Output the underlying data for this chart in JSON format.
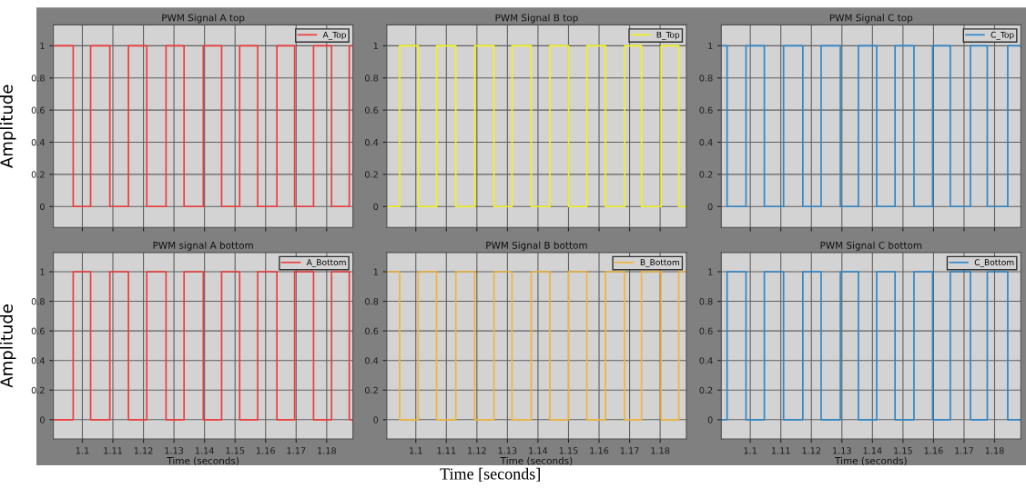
{
  "chart_data": [
    {
      "type": "step",
      "title": "PWM Signal A top",
      "ylabel": "Amplitude",
      "xlim": [
        1.0905,
        1.1886
      ],
      "ylim": [
        -0.13,
        1.13
      ],
      "xticks": [
        1.1,
        1.11,
        1.12,
        1.13,
        1.14,
        1.15,
        1.16,
        1.17,
        1.18
      ],
      "yticks": [
        0,
        0.2,
        0.4,
        0.6,
        0.8,
        1
      ],
      "tick_labels": "y",
      "grid": true,
      "legend": "top right",
      "series": [
        {
          "name": "A_Top",
          "color": "#f03a3a",
          "x": [
            1.0905,
            1.097,
            1.1027,
            1.109,
            1.1151,
            1.1211,
            1.1274,
            1.1333,
            1.1396,
            1.1456,
            1.1515,
            1.1574,
            1.1637,
            1.1695,
            1.1757,
            1.1816,
            1.1874,
            1.1886
          ],
          "values": [
            1,
            0,
            1,
            0,
            1,
            0,
            1,
            0,
            1,
            0,
            1,
            0,
            1,
            0,
            1,
            0,
            1,
            1
          ]
        }
      ]
    },
    {
      "type": "step",
      "title": "PWM Signal B top",
      "xlim": [
        1.0905,
        1.1886
      ],
      "ylim": [
        -0.13,
        1.13
      ],
      "xticks": [
        1.1,
        1.11,
        1.12,
        1.13,
        1.14,
        1.15,
        1.16,
        1.17,
        1.18
      ],
      "yticks": [
        0,
        0.2,
        0.4,
        0.6,
        0.8,
        1
      ],
      "tick_labels": "y",
      "grid": true,
      "legend": "top right",
      "series": [
        {
          "name": "B_Top",
          "color": "#f2f21c",
          "x": [
            1.0905,
            1.0947,
            1.1008,
            1.1068,
            1.1131,
            1.1193,
            1.1256,
            1.1315,
            1.1378,
            1.1439,
            1.15,
            1.156,
            1.1621,
            1.1684,
            1.1739,
            1.1803,
            1.1861,
            1.1886
          ],
          "values": [
            0,
            1,
            0,
            1,
            0,
            1,
            0,
            1,
            0,
            1,
            0,
            1,
            0,
            1,
            0,
            1,
            0,
            0
          ]
        }
      ]
    },
    {
      "type": "step",
      "title": "PWM Signal C top",
      "xlim": [
        1.0905,
        1.1886
      ],
      "ylim": [
        -0.13,
        1.13
      ],
      "xticks": [
        1.1,
        1.11,
        1.12,
        1.13,
        1.14,
        1.15,
        1.16,
        1.17,
        1.18
      ],
      "yticks": [
        0,
        0.2,
        0.4,
        0.6,
        0.8,
        1
      ],
      "tick_labels": "y",
      "grid": true,
      "legend": "top right",
      "series": [
        {
          "name": "C_Top",
          "color": "#2e86c8",
          "x": [
            1.0905,
            1.0924,
            1.0986,
            1.1046,
            1.1109,
            1.1172,
            1.1232,
            1.1295,
            1.1354,
            1.1414,
            1.1474,
            1.1536,
            1.1597,
            1.1655,
            1.1721,
            1.1776,
            1.1843,
            1.1886
          ],
          "values": [
            1,
            0,
            1,
            0,
            1,
            0,
            1,
            0,
            1,
            0,
            1,
            0,
            1,
            0,
            1,
            0,
            1,
            1
          ]
        }
      ]
    },
    {
      "type": "step",
      "title": "PWM signal A bottom",
      "ylabel": "Amplitude",
      "xlabel": "Time (seconds)",
      "xlim": [
        1.0905,
        1.1886
      ],
      "ylim": [
        -0.13,
        1.13
      ],
      "xticks": [
        1.1,
        1.11,
        1.12,
        1.13,
        1.14,
        1.15,
        1.16,
        1.17,
        1.18
      ],
      "yticks": [
        0,
        0.2,
        0.4,
        0.6,
        0.8,
        1
      ],
      "grid": true,
      "legend": "top right",
      "series": [
        {
          "name": "A_Bottom",
          "color": "#f03a3a",
          "x": [
            1.0905,
            1.097,
            1.1027,
            1.109,
            1.1151,
            1.1211,
            1.1274,
            1.1333,
            1.1396,
            1.1456,
            1.1515,
            1.1574,
            1.1637,
            1.1695,
            1.1757,
            1.1816,
            1.1874,
            1.1886
          ],
          "values": [
            0,
            1,
            0,
            1,
            0,
            1,
            0,
            1,
            0,
            1,
            0,
            1,
            0,
            1,
            0,
            1,
            0,
            0
          ]
        }
      ]
    },
    {
      "type": "step",
      "title": "PWM Signal B bottom",
      "xlabel": "Time (seconds)",
      "annotations": [
        "Time [seconds]"
      ],
      "xlim": [
        1.0905,
        1.1886
      ],
      "ylim": [
        -0.13,
        1.13
      ],
      "xticks": [
        1.1,
        1.11,
        1.12,
        1.13,
        1.14,
        1.15,
        1.16,
        1.17,
        1.18
      ],
      "yticks": [
        0,
        0.2,
        0.4,
        0.6,
        0.8,
        1
      ],
      "grid": true,
      "legend": "top right",
      "series": [
        {
          "name": "B_Bottom",
          "color": "#f0b43c",
          "x": [
            1.0905,
            1.0947,
            1.1008,
            1.1068,
            1.1131,
            1.1193,
            1.1256,
            1.1315,
            1.1378,
            1.1439,
            1.15,
            1.156,
            1.1621,
            1.1684,
            1.1739,
            1.1803,
            1.1861,
            1.1886
          ],
          "values": [
            1,
            0,
            1,
            0,
            1,
            0,
            1,
            0,
            1,
            0,
            1,
            0,
            1,
            0,
            1,
            0,
            1,
            1
          ]
        }
      ]
    },
    {
      "type": "step",
      "title": "PWM Signal C bottom",
      "xlabel": "Time (seconds)",
      "xlim": [
        1.0905,
        1.1886
      ],
      "ylim": [
        -0.13,
        1.13
      ],
      "xticks": [
        1.1,
        1.11,
        1.12,
        1.13,
        1.14,
        1.15,
        1.16,
        1.17,
        1.18
      ],
      "yticks": [
        0,
        0.2,
        0.4,
        0.6,
        0.8,
        1
      ],
      "grid": true,
      "legend": "top right",
      "series": [
        {
          "name": "C_Bottom",
          "color": "#2e86c8",
          "x": [
            1.0905,
            1.0924,
            1.0986,
            1.1046,
            1.1109,
            1.1172,
            1.1232,
            1.1295,
            1.1354,
            1.1414,
            1.1474,
            1.1536,
            1.1597,
            1.1655,
            1.1721,
            1.1776,
            1.1843,
            1.1886
          ],
          "values": [
            0,
            1,
            0,
            1,
            0,
            1,
            0,
            1,
            0,
            1,
            0,
            1,
            0,
            1,
            0,
            1,
            0,
            0
          ]
        }
      ]
    }
  ]
}
